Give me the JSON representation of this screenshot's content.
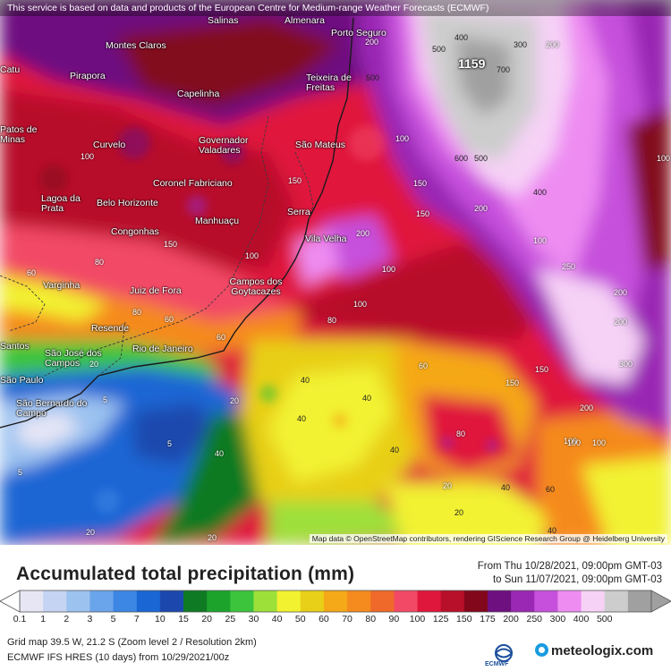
{
  "banner": "This service is based on data and products of the European Centre for Medium-range Weather Forecasts (ECMWF)",
  "attribution": "Map data © OpenStreetMap contributors, rendering GIScience Research Group @ Heidelberg University",
  "max_label": "1159",
  "title": "Accumulated total precipitation (mm)",
  "period": {
    "from": "From Thu 10/28/2021, 09:00pm GMT-03",
    "to": "to Sun 11/07/2021, 09:00pm GMT-03"
  },
  "legend": {
    "ticks": [
      "0.1",
      "1",
      "2",
      "3",
      "5",
      "7",
      "10",
      "15",
      "20",
      "25",
      "30",
      "40",
      "50",
      "60",
      "70",
      "80",
      "90",
      "100",
      "125",
      "150",
      "175",
      "200",
      "250",
      "300",
      "400",
      "500"
    ],
    "colors": [
      "#e6e6f5",
      "#c4d4f2",
      "#9cc2f0",
      "#6aa4ea",
      "#3c86e4",
      "#1a66d4",
      "#1c48ad",
      "#0f7a24",
      "#1ca32c",
      "#3cc43c",
      "#9ee03a",
      "#f2f230",
      "#e8cf18",
      "#f5a818",
      "#f58a1e",
      "#ef6a2a",
      "#f24a66",
      "#e0173c",
      "#b8102a",
      "#82071a",
      "#6e1080",
      "#9a28b4",
      "#c650dc",
      "#ee8cf2",
      "#f6d2f6",
      "#cdcdcd",
      "#a0a0a0"
    ],
    "unit": "mm"
  },
  "footer": {
    "grid": "Grid map 39.5 W, 21.2 S (Zoom level 2 / Resolution 2km)",
    "model": "ECMWF IFS HRES (10 days) from 10/29/2021/00z"
  },
  "logos": {
    "ecmwf": "ECMWF",
    "meteologix": "meteologix.com"
  },
  "cities": [
    {
      "name": "Salinas"
    },
    {
      "name": "Almenara"
    },
    {
      "name": "Montes Claros"
    },
    {
      "name": "Porto Seguro"
    },
    {
      "name": "Pirapora"
    },
    {
      "name": "Teixeira de Freitas"
    },
    {
      "name": "Capelinha"
    },
    {
      "name": "Curvelo"
    },
    {
      "name": "Governador Valadares"
    },
    {
      "name": "São Mateus"
    },
    {
      "name": "Coronel Fabriciano"
    },
    {
      "name": "Lagoa da Prata"
    },
    {
      "name": "Belo Horizonte"
    },
    {
      "name": "Manhuaçu"
    },
    {
      "name": "Serra"
    },
    {
      "name": "Congonhas"
    },
    {
      "name": "Vila Velha"
    },
    {
      "name": "Varginha"
    },
    {
      "name": "Juiz de Fora"
    },
    {
      "name": "Campos dos Goytacazes"
    },
    {
      "name": "Resende"
    },
    {
      "name": "São José dos Campos"
    },
    {
      "name": "Rio de Janeiro"
    },
    {
      "name": "São Paulo"
    },
    {
      "name": "São Bernardo do Campo"
    },
    {
      "name": "Catu"
    },
    {
      "name": "Patos de Minas"
    },
    {
      "name": "Santos"
    }
  ],
  "contour_values": [
    "400",
    "500",
    "300",
    "200",
    "700",
    "600",
    "500",
    "400",
    "200",
    "150",
    "100",
    "100",
    "100",
    "60",
    "80",
    "80",
    "60",
    "60",
    "150",
    "150",
    "100",
    "150",
    "100",
    "200",
    "40",
    "40",
    "40",
    "20",
    "20",
    "5",
    "5",
    "20",
    "5",
    "20",
    "40",
    "80",
    "20",
    "40",
    "60",
    "100",
    "200",
    "300",
    "200",
    "150",
    "80",
    "40",
    "20",
    "40",
    "60",
    "150",
    "100",
    "250",
    "200",
    "200",
    "500",
    "100",
    "100",
    "100"
  ]
}
